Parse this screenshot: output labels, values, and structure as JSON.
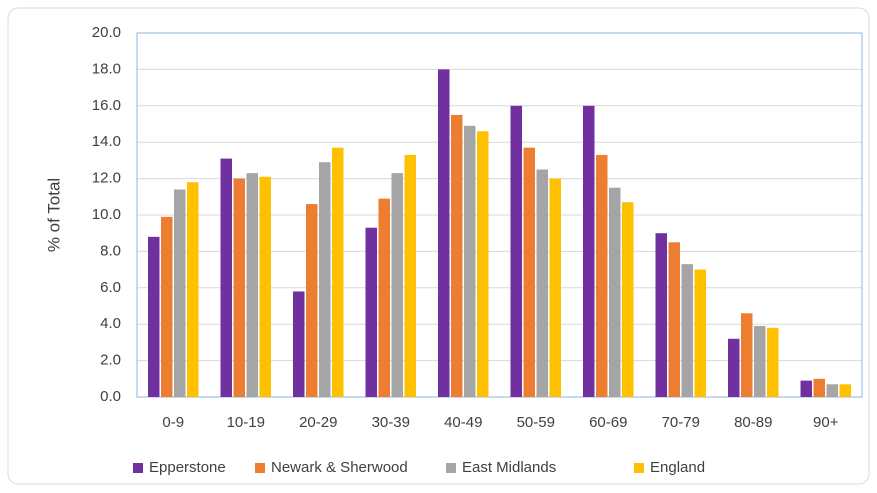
{
  "chart_data": {
    "type": "bar",
    "y_label": "% of Total",
    "categories": [
      "0-9",
      "10-19",
      "20-29",
      "30-39",
      "40-49",
      "50-59",
      "60-69",
      "70-79",
      "80-89",
      "90+"
    ],
    "series": [
      {
        "name": "Epperstone",
        "color": "#7030a0",
        "values": [
          8.8,
          13.1,
          5.8,
          9.3,
          18.0,
          16.0,
          16.0,
          9.0,
          3.2,
          0.9
        ]
      },
      {
        "name": "Newark & Sherwood",
        "color": "#ed7d31",
        "values": [
          9.9,
          12.0,
          10.6,
          10.9,
          15.5,
          13.7,
          13.3,
          8.5,
          4.6,
          1.0
        ]
      },
      {
        "name": "East Midlands",
        "color": "#a5a5a5",
        "values": [
          11.4,
          12.3,
          12.9,
          12.3,
          14.9,
          12.5,
          11.5,
          7.3,
          3.9,
          0.7
        ]
      },
      {
        "name": "England",
        "color": "#ffc000",
        "values": [
          11.8,
          12.1,
          13.7,
          13.3,
          14.6,
          12.0,
          10.7,
          7.0,
          3.8,
          0.7
        ]
      }
    ],
    "ylim": [
      0,
      20
    ],
    "yticks": [
      {
        "value": 0,
        "label": "0.0"
      },
      {
        "value": 2,
        "label": "2.0"
      },
      {
        "value": 4,
        "label": "4.0"
      },
      {
        "value": 6,
        "label": "6.0"
      },
      {
        "value": 8,
        "label": "8.0"
      },
      {
        "value": 10,
        "label": "10.0"
      },
      {
        "value": 12,
        "label": "12.0"
      },
      {
        "value": 14,
        "label": "14.0"
      },
      {
        "value": 16,
        "label": "16.0"
      },
      {
        "value": 18,
        "label": "18.0"
      },
      {
        "value": 20,
        "label": "20.0"
      }
    ],
    "grid": true,
    "legend": "bottom"
  }
}
